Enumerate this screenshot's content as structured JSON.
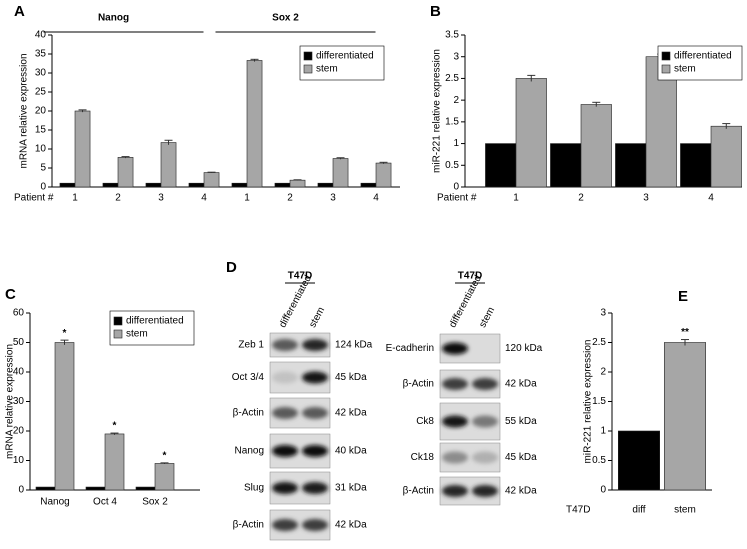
{
  "chart_data": [
    {
      "type": "bar",
      "panel": "A",
      "groups": [
        "Nanog",
        "Sox 2"
      ],
      "x_prefix": "Patient #",
      "categories": [
        "1",
        "2",
        "3",
        "4",
        "1",
        "2",
        "3",
        "4"
      ],
      "ylabel": "mRNA relative expression",
      "ylim": [
        0,
        40
      ],
      "yticks": [
        0,
        5,
        10,
        15,
        20,
        25,
        30,
        35,
        40
      ],
      "legend": "upper right",
      "series": [
        {
          "name": "differentiated",
          "color": "#000000",
          "values": [
            1,
            1,
            1,
            1,
            1,
            1,
            1,
            1
          ]
        },
        {
          "name": "stem",
          "color": "#a6a6a6",
          "values": [
            20,
            7.8,
            11.7,
            3.8,
            33.3,
            1.8,
            7.5,
            6.3
          ],
          "errors": [
            0.3,
            0.2,
            0.6,
            0.1,
            0.3,
            0.1,
            0.2,
            0.2
          ]
        }
      ]
    },
    {
      "type": "bar",
      "panel": "B",
      "x_prefix": "Patient #",
      "categories": [
        "1",
        "2",
        "3",
        "4"
      ],
      "ylabel": "miR-221 relative expression",
      "ylim": [
        0,
        3.5
      ],
      "yticks": [
        0,
        0.5,
        1,
        1.5,
        2,
        2.5,
        3,
        3.5
      ],
      "legend": "upper right",
      "series": [
        {
          "name": "differentiated",
          "color": "#000000",
          "values": [
            1,
            1,
            1,
            1
          ]
        },
        {
          "name": "stem",
          "color": "#a6a6a6",
          "values": [
            2.5,
            1.9,
            3.0,
            1.4
          ],
          "errors": [
            0.07,
            0.05,
            0.06,
            0.06
          ]
        }
      ]
    },
    {
      "type": "bar",
      "panel": "C",
      "categories": [
        "Nanog",
        "Oct 4",
        "Sox 2"
      ],
      "ylabel": "mRNA relative expression",
      "ylim": [
        0,
        60
      ],
      "yticks": [
        0,
        10,
        20,
        30,
        40,
        50,
        60
      ],
      "legend": "upper right",
      "annotations": [
        "*",
        "*",
        "*"
      ],
      "series": [
        {
          "name": "differentiated",
          "color": "#000000",
          "values": [
            1,
            1,
            1
          ]
        },
        {
          "name": "stem",
          "color": "#a6a6a6",
          "values": [
            50,
            19,
            9
          ],
          "errors": [
            0.8,
            0.3,
            0.2
          ]
        }
      ]
    },
    {
      "type": "bar",
      "panel": "E",
      "x_prefix": "T47D",
      "categories": [
        "diff",
        "stem"
      ],
      "ylabel": "miR-221 relative expression",
      "ylim": [
        0,
        3
      ],
      "yticks": [
        0,
        0.5,
        1,
        1.5,
        2,
        2.5,
        3
      ],
      "annotations": [
        null,
        "**"
      ],
      "values": [
        1,
        2.5
      ],
      "colors": [
        "#000000",
        "#a6a6a6"
      ],
      "errors": [
        null,
        0.05
      ]
    }
  ],
  "blot_panel": {
    "panel": "D",
    "blots": [
      {
        "title": "T47D",
        "lanes": [
          "differentiated",
          "stem"
        ],
        "rows": [
          {
            "protein": "Zeb 1",
            "size": "124 kDa"
          },
          {
            "protein": "Oct 3/4",
            "size": "45 kDa"
          },
          {
            "protein": "β-Actin",
            "size": "42 kDa"
          },
          {
            "protein": "Nanog",
            "size": "40 kDa"
          },
          {
            "protein": "Slug",
            "size": "31 kDa"
          },
          {
            "protein": "β-Actin",
            "size": "42 kDa"
          }
        ]
      },
      {
        "title": "T47D",
        "lanes": [
          "differentiated",
          "stem"
        ],
        "rows": [
          {
            "protein": "E-cadherin",
            "size": "120 kDa"
          },
          {
            "protein": "β-Actin",
            "size": "42 kDa"
          },
          {
            "protein": "Ck8",
            "size": "55 kDa"
          },
          {
            "protein": "Ck18",
            "size": "45 kDa"
          },
          {
            "protein": "β-Actin",
            "size": "42 kDa"
          }
        ]
      }
    ]
  }
}
